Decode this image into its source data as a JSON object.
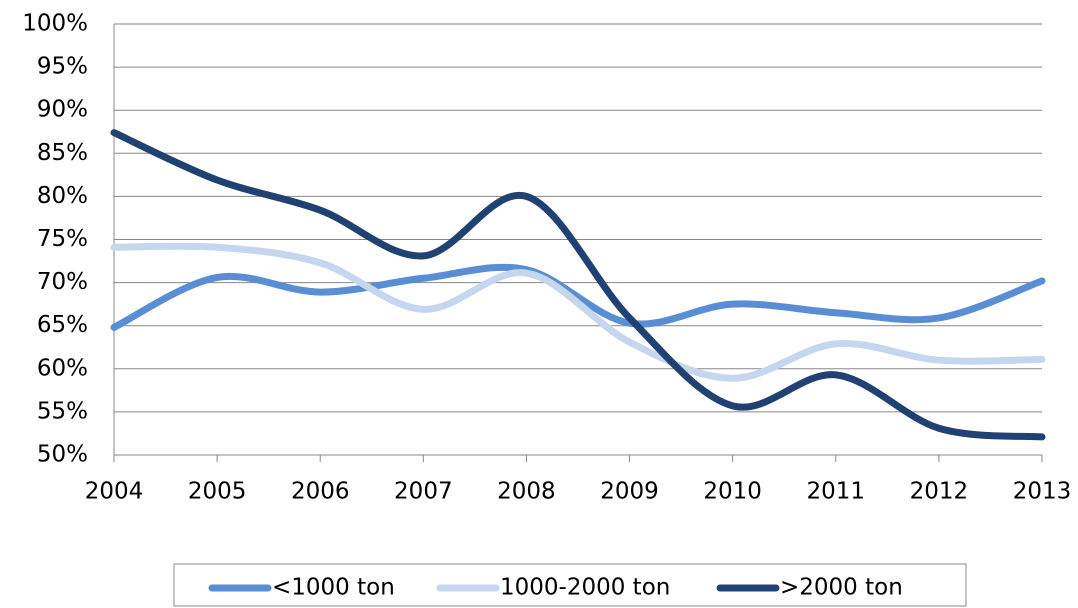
{
  "chart_data": {
    "type": "line",
    "categories": [
      "2004",
      "2005",
      "2006",
      "2007",
      "2008",
      "2009",
      "2010",
      "2011",
      "2012",
      "2013"
    ],
    "series": [
      {
        "name": "<1000 ton",
        "color": "#5a8ed4",
        "values": [
          64.8,
          70.6,
          68.9,
          70.5,
          71.5,
          65.3,
          67.5,
          66.5,
          65.9,
          70.2
        ]
      },
      {
        "name": "1000-2000 ton",
        "color": "#c6d6ef",
        "values": [
          74.1,
          74.1,
          72.3,
          66.9,
          71.1,
          63.1,
          58.9,
          62.9,
          61.0,
          61.1
        ]
      },
      {
        "name": ">2000 ton",
        "color": "#1f4272",
        "values": [
          87.4,
          81.9,
          78.4,
          73.1,
          80.0,
          65.9,
          55.7,
          59.3,
          53.1,
          52.1
        ]
      }
    ],
    "ylim": [
      50,
      100
    ],
    "yticks": [
      {
        "value": 50,
        "label": "50%"
      },
      {
        "value": 55,
        "label": "55%"
      },
      {
        "value": 60,
        "label": "60%"
      },
      {
        "value": 65,
        "label": "65%"
      },
      {
        "value": 70,
        "label": "70%"
      },
      {
        "value": 75,
        "label": "75%"
      },
      {
        "value": 80,
        "label": "80%"
      },
      {
        "value": 85,
        "label": "85%"
      },
      {
        "value": 90,
        "label": "90%"
      },
      {
        "value": 95,
        "label": "95%"
      },
      {
        "value": 100,
        "label": "100%"
      }
    ],
    "grid": true,
    "legend": "bottom"
  }
}
